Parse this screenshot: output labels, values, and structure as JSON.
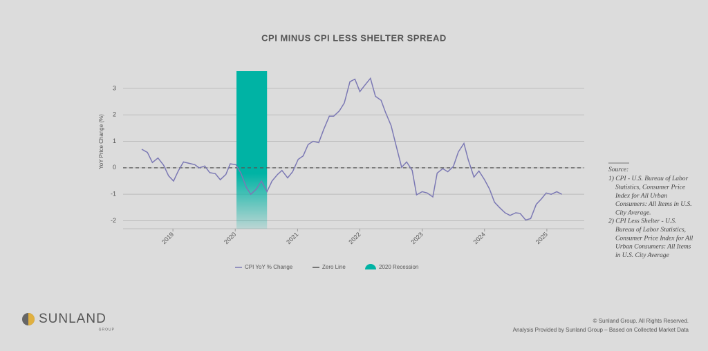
{
  "chart_data": {
    "type": "line",
    "title": "CPI MINUS CPI LESS SHELTER SPREAD",
    "y_label": "YoY Price Change (%)",
    "xlim": [
      2018.2,
      2025.6
    ],
    "xticks": [
      2019,
      2020,
      2021,
      2022,
      2023,
      2024,
      2025
    ],
    "ylim": [
      -2.3,
      3.65
    ],
    "yticks": [
      -2,
      -1,
      0,
      1,
      2,
      3
    ],
    "grid": true,
    "series": [
      {
        "name": "CPI YoY % Change",
        "color": "#7b78b4",
        "x": [
          2018.5,
          2018.59,
          2018.67,
          2018.76,
          2018.85,
          2018.93,
          2019.01,
          2019.09,
          2019.17,
          2019.26,
          2019.35,
          2019.42,
          2019.51,
          2019.59,
          2019.68,
          2019.76,
          2019.85,
          2019.92,
          2020.01,
          2020.09,
          2020.18,
          2020.25,
          2020.34,
          2020.42,
          2020.51,
          2020.59,
          2020.68,
          2020.75,
          2020.84,
          2020.92,
          2021.01,
          2021.09,
          2021.17,
          2021.25,
          2021.34,
          2021.42,
          2021.51,
          2021.58,
          2021.67,
          2021.75,
          2021.84,
          2021.92,
          2022.0,
          2022.08,
          2022.17,
          2022.25,
          2022.34,
          2022.41,
          2022.5,
          2022.58,
          2022.67,
          2022.75,
          2022.84,
          2022.91,
          2023.0,
          2023.08,
          2023.17,
          2023.24,
          2023.33,
          2023.41,
          2023.5,
          2023.58,
          2023.67,
          2023.74,
          2023.83,
          2023.91,
          2024.0,
          2024.08,
          2024.16,
          2024.24,
          2024.33,
          2024.41,
          2024.5,
          2024.57,
          2024.66,
          2024.74,
          2024.83,
          2024.91,
          2024.99,
          2025.07,
          2025.16,
          2025.24
        ],
        "values": [
          0.7,
          0.58,
          0.2,
          0.37,
          0.1,
          -0.3,
          -0.5,
          -0.1,
          0.22,
          0.17,
          0.12,
          0,
          0.07,
          -0.18,
          -0.22,
          -0.45,
          -0.25,
          0.15,
          0.12,
          -0.2,
          -0.75,
          -1.0,
          -0.8,
          -0.5,
          -0.9,
          -0.5,
          -0.25,
          -0.1,
          -0.38,
          -0.15,
          0.32,
          0.45,
          0.88,
          1.0,
          0.95,
          1.45,
          1.95,
          1.95,
          2.15,
          2.45,
          3.25,
          3.35,
          2.88,
          3.12,
          3.38,
          2.7,
          2.55,
          2.1,
          1.6,
          0.85,
          0.02,
          0.22,
          -0.1,
          -1.02,
          -0.9,
          -0.95,
          -1.1,
          -0.2,
          -0.03,
          -0.15,
          0.05,
          0.6,
          0.92,
          0.3,
          -0.35,
          -0.12,
          -0.45,
          -0.8,
          -1.3,
          -1.5,
          -1.7,
          -1.8,
          -1.7,
          -1.72,
          -1.97,
          -1.92,
          -1.38,
          -1.18,
          -0.95,
          -1.0,
          -0.9,
          -1.0
        ]
      }
    ],
    "hline": {
      "name": "Zero Line",
      "value": 0,
      "color": "#555555"
    },
    "shade": {
      "name": "2020 Recession",
      "x": [
        2020.02,
        2020.51
      ],
      "color": "#00b3a4"
    }
  },
  "notes": {
    "heading": "Source:",
    "lines": [
      "1) CPI - U.S. Bureau of Labor",
      "Statistics, Consumer Price",
      "Index for All Urban",
      "Consumers: All Items in U.S.",
      "City Average.",
      "2) CPI  Less Shelter - U.S.",
      "Bureau of Labor Statistics,",
      "Consumer Price Index for All",
      "Urban Consumers: All Items",
      "in U.S. City Average"
    ]
  },
  "logo": {
    "name": "SUNLAND",
    "sub": "GROUP"
  },
  "footer": [
    "© Sunland Group. All Rights Reserved.",
    "Analysis Provided by Sunland Group – Based on Collected Market Data"
  ]
}
